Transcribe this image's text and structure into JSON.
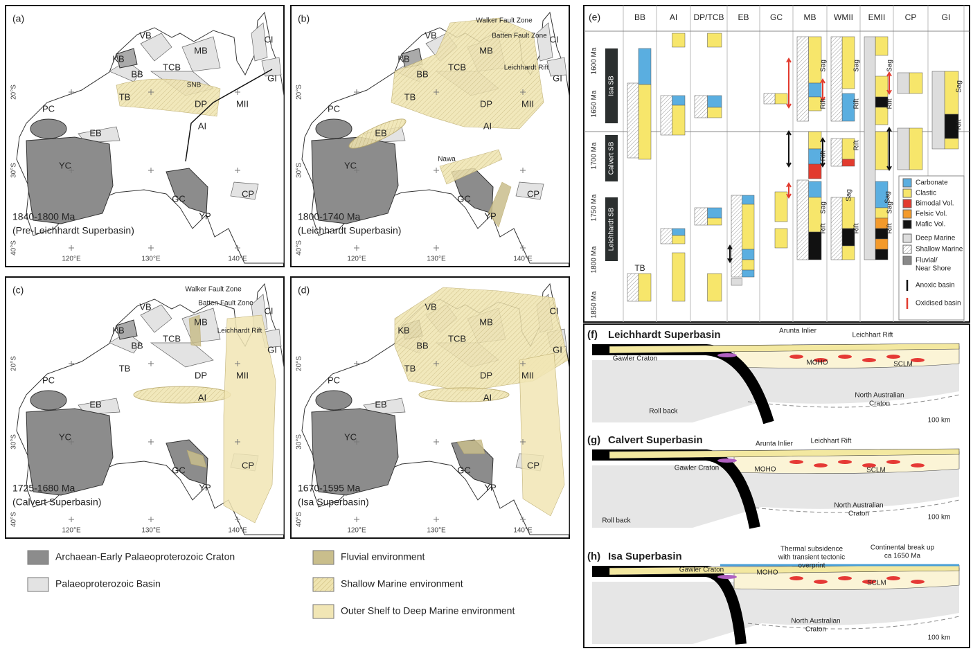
{
  "maps": [
    {
      "label": "(a)",
      "period": "1840-1800 Ma",
      "name": "(Pre-Leichhardt Superbasin)",
      "regions": [
        "VB",
        "KB",
        "MB",
        "CI",
        "BB",
        "TCB",
        "GI",
        "TB",
        "DP",
        "MII",
        "PC",
        "EB",
        "AI",
        "YC",
        "GC",
        "CP",
        "YP"
      ],
      "annotations": [
        "SNB"
      ],
      "longitudes": [
        "120°E",
        "130°E",
        "140°E"
      ],
      "latitudes": [
        "20°S",
        "30°S",
        "40°S"
      ]
    },
    {
      "label": "(b)",
      "period": "1800-1740 Ma",
      "name": "(Leichhardt Superbasin)",
      "regions": [
        "VB",
        "KB",
        "MB",
        "CI",
        "BB",
        "TCB",
        "GI",
        "TB",
        "DP",
        "MII",
        "PC",
        "EB",
        "AI",
        "YC",
        "GC",
        "CP",
        "YP"
      ],
      "annotations": [
        "Walker Fault Zone",
        "Batten Fault Zone",
        "Leichhardt Rift",
        "Nawa"
      ],
      "longitudes": [
        "120°E",
        "130°E",
        "140°E"
      ],
      "latitudes": [
        "20°S",
        "30°S",
        "40°S"
      ]
    },
    {
      "label": "(c)",
      "period": "1725-1680 Ma",
      "name": "(Calvert Superbasin)",
      "regions": [
        "VB",
        "KB",
        "MB",
        "CI",
        "BB",
        "TCB",
        "GI",
        "TB",
        "DP",
        "MII",
        "PC",
        "EB",
        "AI",
        "YC",
        "GC",
        "CP",
        "YP"
      ],
      "annotations": [
        "Walker Fault Zone",
        "Batten Fault Zone",
        "Leichhardt Rift"
      ],
      "longitudes": [
        "120°E",
        "130°E",
        "140°E"
      ],
      "latitudes": [
        "20°S",
        "30°S",
        "40°S"
      ]
    },
    {
      "label": "(d)",
      "period": "1670-1595 Ma",
      "name": "(Isa Superbasin)",
      "regions": [
        "VB",
        "KB",
        "MB",
        "CI",
        "BB",
        "TCB",
        "GI",
        "TB",
        "DP",
        "MII",
        "PC",
        "EB",
        "AI",
        "YC",
        "GC",
        "CP",
        "YP"
      ],
      "longitudes": [
        "120°E",
        "130°E",
        "140°E"
      ],
      "latitudes": [
        "20°S",
        "30°S",
        "40°S"
      ]
    }
  ],
  "legend": [
    "Archaean-Early Palaeoproterozoic Craton",
    "Palaeoproterozoic Basin",
    "Fluvial environment",
    "Shallow Marine environment",
    "Outer Shelf to Deep Marine environment"
  ],
  "chronostratigraphy": {
    "label": "(e)",
    "columns": [
      "BB",
      "AI",
      "DP/TCB",
      "EB",
      "GC",
      "MB",
      "WMII",
      "EMII",
      "CP",
      "GI"
    ],
    "ages": [
      "1600 Ma",
      "1650 Ma",
      "1700 Ma",
      "1750 Ma",
      "1800 Ma",
      "1850 Ma"
    ],
    "superbasins": [
      "Isa SB",
      "Calvert SB",
      "Leichhardt SB"
    ],
    "column_notes": [
      "TB",
      "Sag",
      "Rift"
    ],
    "legend": [
      "Carbonate",
      "Clastic",
      "Bimodal Vol.",
      "Felsic Vol.",
      "Mafic Vol.",
      "Deep Marine",
      "Shallow Marine",
      "Fluvial/",
      "Near Shore",
      "Anoxic basin",
      "Oxidised basin"
    ]
  },
  "sections": [
    {
      "label": "(f)",
      "title": "Leichhardt Superbasin",
      "labels": [
        "Arunta Inlier",
        "Leichhart Rift",
        "Gawler Craton",
        "MOHO",
        "SCLM",
        "North Australian",
        "Craton",
        "Roll back",
        "100 km"
      ]
    },
    {
      "label": "(g)",
      "title": "Calvert Superbasin",
      "labels": [
        "Arunta Inlier",
        "Leichhart Rift",
        "Gawler Craton",
        "MOHO",
        "SCLM",
        "North Australian",
        "Craton",
        "Roll back",
        "100 km"
      ]
    },
    {
      "label": "(h)",
      "title": "Isa Superbasin",
      "labels": [
        "Thermal subsidence",
        "with transient tectonic",
        "overprint",
        "Continental break up",
        "ca 1650 Ma",
        "Gawler Craton",
        "MOHO",
        "SCLM",
        "North Australian",
        "Craton",
        "100 km"
      ]
    }
  ]
}
